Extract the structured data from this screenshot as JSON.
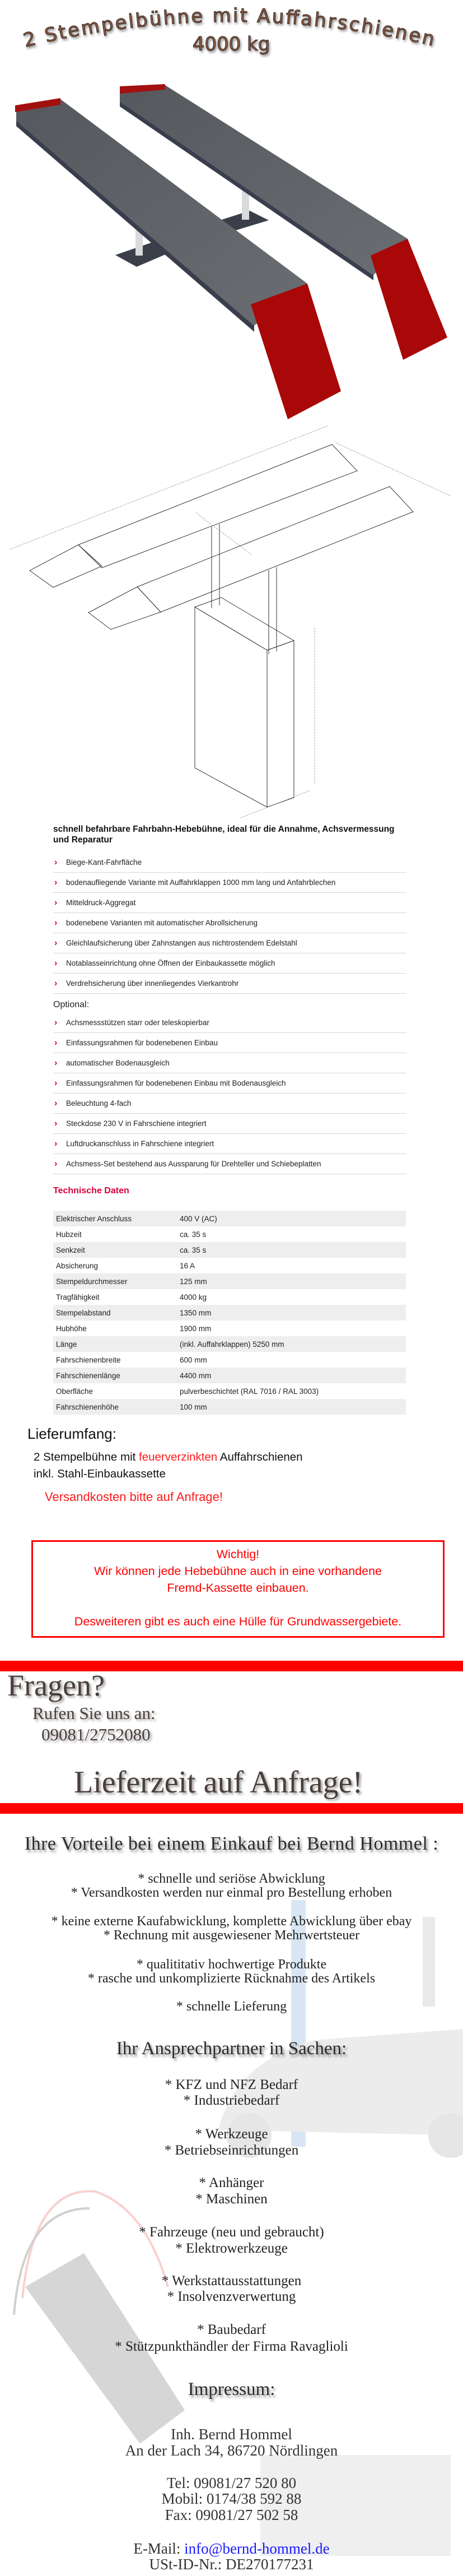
{
  "title": {
    "line1": "2 Stempelbühne mit Auffahrschienen",
    "line2": "4000 kg"
  },
  "colors": {
    "accent": "#d4003b",
    "alert_red": "#ff0000",
    "rail_gray": "#5f6368",
    "ramp_red": "#a80808"
  },
  "intro": "schnell befahrbare Fahrbahn-Hebebühne, ideal für die Annahme, Achsvermessung und Reparatur",
  "features": [
    "Biege-Kant-Fahrfläche",
    "bodenaufliegende Variante mit Auffahrklappen 1000 mm lang und Anfahrblechen",
    "Mitteldruck-Aggregat",
    "bodenebene Varianten mit automatischer Abrollsicherung",
    "Gleichlaufsicherung über Zahnstangen aus nichtrostendem Edelstahl",
    "Notablasseinrichtung ohne Öffnen der Einbaukassette möglich",
    "Verdrehsicherung über innenliegendes Vierkantrohr"
  ],
  "optional_label": "Optional:",
  "optional": [
    "Achsmessstützen starr oder teleskopierbar",
    "Einfassungsrahmen für bodenebenen Einbau",
    "automatischer Bodenausgleich",
    "Einfassungsrahmen für bodenebenen Einbau mit Bodenausgleich",
    "Beleuchtung 4-fach",
    "Steckdose 230 V in Fahrschiene integriert",
    "Luftdruckanschluss in Fahrschiene integriert",
    "Achsmess-Set bestehend aus Aussparung für Drehteller und Schiebeplatten"
  ],
  "tech_title": "Technische Daten",
  "specs": [
    [
      "Elektrischer Anschluss",
      "400 V (AC)"
    ],
    [
      "Hubzeit",
      "ca. 35 s"
    ],
    [
      "Senkzeit",
      "ca. 35 s"
    ],
    [
      "Absicherung",
      "16 A"
    ],
    [
      "Stempeldurchmesser",
      "125 mm"
    ],
    [
      "Tragfähigkeit",
      "4000 kg"
    ],
    [
      "Stempelabstand",
      "1350 mm"
    ],
    [
      "Hubhöhe",
      "1900 mm"
    ],
    [
      "Länge",
      "(inkl. Auffahrklappen) 5250 mm"
    ],
    [
      "Fahrschienenbreite",
      "600 mm"
    ],
    [
      "Fahrschienenlänge",
      "4400 mm"
    ],
    [
      "Oberfläche",
      "pulverbeschichtet (RAL 7016 / RAL 3003)"
    ],
    [
      "Fahrschienenhöhe",
      "100 mm"
    ]
  ],
  "delivery": {
    "heading": "Lieferumfang:",
    "line1_a": "2 Stempelbühne mit ",
    "line1_red": "feuerverzinkten",
    "line1_b": " Auffahrschienen",
    "line2": "inkl. Stahl-Einbaukassette",
    "shipping": "Versandkosten bitte auf Anfrage!"
  },
  "notice": {
    "title": "Wichtig!",
    "line1": "Wir können jede Hebebühne auch in eine vorhandene",
    "line2": "Fremd-Kassette einbauen.",
    "line3": "Desweiteren gibt es auch eine Hülle für Grundwassergebiete."
  },
  "contact_banner": {
    "question": "Fragen?",
    "call": "Rufen Sie uns an:",
    "phone": "09081/2752080",
    "delivery_time": "Lieferzeit auf Anfrage!"
  },
  "advantages": {
    "heading": "Ihre Vorteile bei einem Einkauf bei Bernd Hommel :",
    "items": [
      "* schnelle und seriöse Abwicklung",
      "* Versandkosten werden nur einmal pro Bestellung erhoben",
      "* keine externe Kaufabwicklung, komplette Abwicklung über ebay",
      "* Rechnung mit ausgewiesener Mehrwertsteuer",
      "* qualititativ hochwertige Produkte",
      "* rasche und unkomplizierte Rücknahme des Artikels",
      "* schnelle Lieferung"
    ]
  },
  "partner": {
    "heading": "Ihr Ansprechpartner in Sachen:",
    "items": [
      "* KFZ und NFZ Bedarf",
      "* Industriebedarf",
      "* Werkzeuge",
      "* Betriebseinrichtungen",
      "* Anhänger",
      "* Maschinen",
      "* Fahrzeuge (neu und gebraucht)",
      "* Elektrowerkzeuge",
      "* Werkstattausstattungen",
      "* Insolvenzverwertung",
      "* Baubedarf",
      "* Stützpunkthändler der Firma Ravaglioli"
    ]
  },
  "impressum": {
    "heading": "Impressum:",
    "owner": "Inh. Bernd Hommel",
    "address": "An der Lach 34, 86720 Nördlingen",
    "tel": "Tel: 09081/27 520 80",
    "mobil": "Mobil: 0174/38 592 88",
    "fax": "Fax: 09081/27 502 58",
    "email_label": "E-Mail: ",
    "email": "info@bernd-hommel.de",
    "vat": "USt-ID-Nr.: DE270177231"
  }
}
